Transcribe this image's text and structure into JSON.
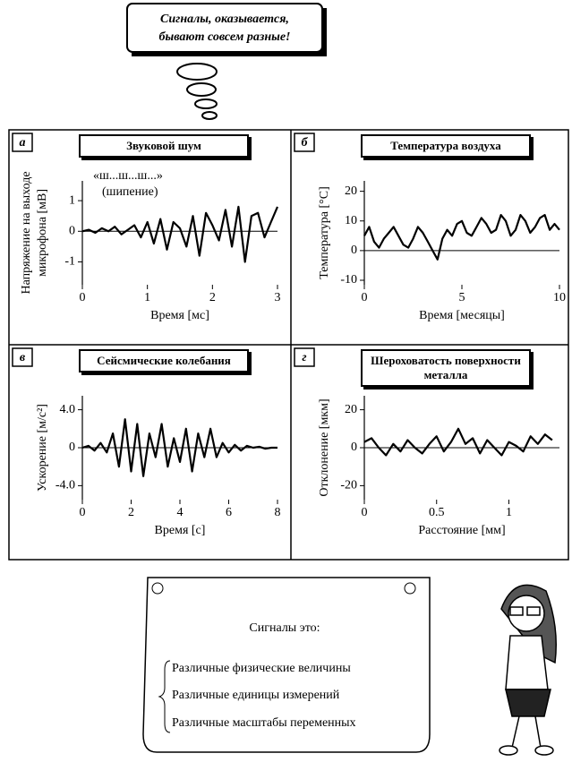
{
  "bubble": {
    "lines": [
      "Сигналы, оказывается,",
      "бывают совсем разные!"
    ]
  },
  "chart_data": [
    {
      "type": "line",
      "panel": "а",
      "title": "Звуковой шум",
      "ylabel": [
        "Напряжение на выходе",
        "микрофона [мВ]"
      ],
      "xlabel": "Время [мс]",
      "annotations": [
        "«ш...ш...ш...»",
        "(шипение)"
      ],
      "color": "#000000",
      "x": [
        0,
        0.1,
        0.2,
        0.3,
        0.4,
        0.5,
        0.6,
        0.7,
        0.8,
        0.9,
        1,
        1.1,
        1.2,
        1.3,
        1.4,
        1.5,
        1.6,
        1.7,
        1.8,
        1.9,
        2,
        2.1,
        2.2,
        2.3,
        2.4,
        2.5,
        2.6,
        2.7,
        2.8,
        2.9,
        3
      ],
      "values": [
        0,
        0.05,
        -0.05,
        0.1,
        0,
        0.15,
        -0.1,
        0.05,
        0.2,
        -0.2,
        0.3,
        -0.4,
        0.4,
        -0.6,
        0.3,
        0.1,
        -0.5,
        0.5,
        -0.8,
        0.6,
        0.2,
        -0.3,
        0.7,
        -0.5,
        0.8,
        -1.0,
        0.5,
        0.6,
        -0.2,
        0.3,
        0.8
      ],
      "xlim": [
        0,
        3
      ],
      "xticks": [
        0,
        1,
        2,
        3
      ],
      "ylim": [
        -1.6,
        1.5
      ],
      "yticks": [
        -1,
        0,
        1
      ]
    },
    {
      "type": "line",
      "panel": "б",
      "title": "Температура воздуха",
      "ylabel": [
        "Температура [°C]"
      ],
      "xlabel": "Время [месяцы]",
      "color": "#000000",
      "x": [
        0,
        0.25,
        0.5,
        0.75,
        1,
        1.25,
        1.5,
        1.75,
        2,
        2.25,
        2.5,
        2.75,
        3,
        3.25,
        3.5,
        3.75,
        4,
        4.25,
        4.5,
        4.75,
        5,
        5.25,
        5.5,
        5.75,
        6,
        6.25,
        6.5,
        6.75,
        7,
        7.25,
        7.5,
        7.75,
        8,
        8.25,
        8.5,
        8.75,
        9,
        9.25,
        9.5,
        9.75,
        10
      ],
      "values": [
        5,
        8,
        3,
        1,
        4,
        6,
        8,
        5,
        2,
        1,
        4,
        8,
        6,
        3,
        0,
        -3,
        4,
        7,
        5,
        9,
        10,
        6,
        5,
        8,
        11,
        9,
        6,
        7,
        12,
        10,
        5,
        7,
        12,
        10,
        6,
        8,
        11,
        12,
        7,
        9,
        7
      ],
      "xlim": [
        0,
        10
      ],
      "xticks": [
        0,
        5,
        10
      ],
      "ylim": [
        -10,
        22
      ],
      "yticks": [
        -10,
        0,
        10,
        20
      ]
    },
    {
      "type": "line",
      "panel": "в",
      "title": "Сейсмические колебания",
      "ylabel": [
        "Ускорение [м/с²]"
      ],
      "xlabel": "Время [с]",
      "color": "#000000",
      "x": [
        0,
        0.25,
        0.5,
        0.75,
        1,
        1.25,
        1.5,
        1.75,
        2,
        2.25,
        2.5,
        2.75,
        3,
        3.25,
        3.5,
        3.75,
        4,
        4.25,
        4.5,
        4.75,
        5,
        5.25,
        5.5,
        5.75,
        6,
        6.25,
        6.5,
        6.75,
        7,
        7.25,
        7.5,
        7.75,
        8
      ],
      "values": [
        0,
        0.2,
        -0.3,
        0.5,
        -0.5,
        1.5,
        -2,
        3,
        -2.5,
        2.5,
        -3,
        1.5,
        -1,
        2.5,
        -2,
        1,
        -1.5,
        2,
        -2.5,
        1.5,
        -1,
        2,
        -1,
        0.5,
        -0.5,
        0.3,
        -0.3,
        0.2,
        0,
        0.1,
        -0.1,
        0,
        0
      ],
      "xlim": [
        0,
        8
      ],
      "xticks": [
        0,
        2,
        4,
        6,
        8
      ],
      "ylim": [
        -5,
        5
      ],
      "yticks": [
        {
          "value": 4,
          "label": "4.0"
        },
        0,
        {
          "value": -4,
          "label": "-4.0"
        }
      ]
    },
    {
      "type": "line",
      "panel": "г",
      "title": "Шероховатость поверхности металла",
      "ylabel": [
        "Отклонение [мкм]"
      ],
      "xlabel": "Расстояние [мм]",
      "color": "#000000",
      "x": [
        0,
        0.05,
        0.1,
        0.15,
        0.2,
        0.25,
        0.3,
        0.35,
        0.4,
        0.45,
        0.5,
        0.55,
        0.6,
        0.65,
        0.7,
        0.75,
        0.8,
        0.85,
        0.9,
        0.95,
        1,
        1.05,
        1.1,
        1.15,
        1.2,
        1.25,
        1.3
      ],
      "values": [
        3,
        5,
        0,
        -4,
        2,
        -2,
        4,
        0,
        -3,
        2,
        6,
        -2,
        3,
        10,
        2,
        5,
        -3,
        4,
        0,
        -4,
        3,
        1,
        -2,
        6,
        2,
        7,
        4
      ],
      "xlim": [
        0,
        1.35
      ],
      "xticks": [
        0,
        0.5,
        1
      ],
      "ylim": [
        -25,
        25
      ],
      "yticks": [
        20,
        0,
        -20
      ]
    }
  ],
  "scroll": {
    "heading": "Сигналы это:",
    "items": [
      "Различные физические величины",
      "Различные единицы измерений",
      "Различные масштабы переменных"
    ]
  }
}
